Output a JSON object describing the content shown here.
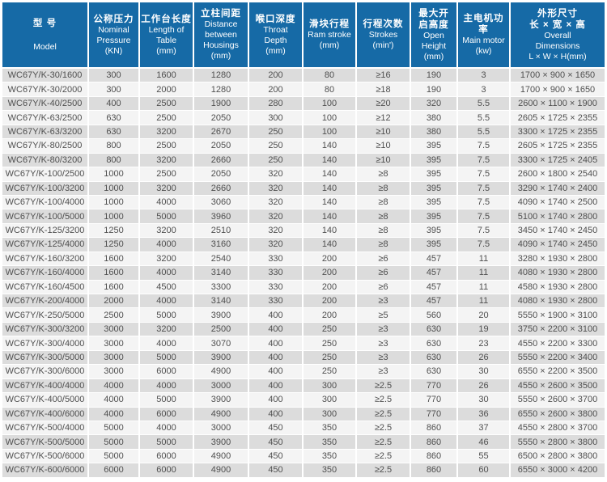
{
  "colors": {
    "header_bg": "#166aa6",
    "header_text": "#ffffff",
    "row_odd_bg": "#dcdcdc",
    "row_even_bg": "#f4f4f4",
    "cell_text": "#4f4f4f",
    "separator": "#ffffff",
    "page_bg": "#ffffff"
  },
  "table": {
    "name": "press-brake-specification-table",
    "columns": [
      {
        "key": "model",
        "zh": [
          "型 号"
        ],
        "en": [
          "Model"
        ]
      },
      {
        "key": "nominal-pressure",
        "zh": [
          "公称压力"
        ],
        "en": [
          "Nominal",
          "Pressure",
          "(KN)"
        ]
      },
      {
        "key": "table-length",
        "zh": [
          "工作台长度"
        ],
        "en": [
          "Length of",
          "Table",
          "(mm)"
        ]
      },
      {
        "key": "housing-distance",
        "zh": [
          "立柱间距"
        ],
        "en": [
          "Distance",
          "between",
          "Housings",
          "(mm)"
        ]
      },
      {
        "key": "throat-depth",
        "zh": [
          "喉口深度"
        ],
        "en": [
          "Throat",
          "Depth",
          "(mm)"
        ]
      },
      {
        "key": "ram-stroke",
        "zh": [
          "滑块行程"
        ],
        "en": [
          "Ram stroke",
          "(mm)"
        ]
      },
      {
        "key": "strokes",
        "zh": [
          "行程次数"
        ],
        "en": [
          "Strokes",
          "(min')"
        ]
      },
      {
        "key": "open-height",
        "zh": [
          "最大开",
          "启高度"
        ],
        "en": [
          "Open",
          "Height",
          "(mm)"
        ]
      },
      {
        "key": "main-motor",
        "zh": [
          "主电机功率"
        ],
        "en": [
          "Main motor",
          "(kw)"
        ]
      },
      {
        "key": "overall-dimensions",
        "zh": [
          "外形尺寸",
          "长 × 宽 × 高"
        ],
        "en": [
          "Overall",
          "Dimensions",
          "L × W × H(mm)"
        ]
      }
    ],
    "rows": [
      [
        "WC67Y/K-30/1600",
        "300",
        "1600",
        "1280",
        "200",
        "80",
        "≥16",
        "190",
        "3",
        "1700 × 900 × 1650"
      ],
      [
        "WC67Y/K-30/2000",
        "300",
        "2000",
        "1280",
        "200",
        "80",
        "≥18",
        "190",
        "3",
        "1700 × 900 × 1650"
      ],
      [
        "WC67Y/K-40/2500",
        "400",
        "2500",
        "1900",
        "280",
        "100",
        "≥20",
        "320",
        "5.5",
        "2600 × 1100 × 1900"
      ],
      [
        "WC67Y/K-63/2500",
        "630",
        "2500",
        "2050",
        "300",
        "100",
        "≥12",
        "380",
        "5.5",
        "2605 × 1725 × 2355"
      ],
      [
        "WC67Y/K-63/3200",
        "630",
        "3200",
        "2670",
        "250",
        "100",
        "≥10",
        "380",
        "5.5",
        "3300 × 1725 × 2355"
      ],
      [
        "WC67Y/K-80/2500",
        "800",
        "2500",
        "2050",
        "250",
        "140",
        "≥10",
        "395",
        "7.5",
        "2605 × 1725 × 2355"
      ],
      [
        "WC67Y/K-80/3200",
        "800",
        "3200",
        "2660",
        "250",
        "140",
        "≥10",
        "395",
        "7.5",
        "3300 × 1725 × 2405"
      ],
      [
        "WC67Y/K-100/2500",
        "1000",
        "2500",
        "2050",
        "320",
        "140",
        "≥8",
        "395",
        "7.5",
        "2600 × 1800 × 2540"
      ],
      [
        "WC67Y/K-100/3200",
        "1000",
        "3200",
        "2660",
        "320",
        "140",
        "≥8",
        "395",
        "7.5",
        "3290 × 1740 × 2400"
      ],
      [
        "WC67Y/K-100/4000",
        "1000",
        "4000",
        "3060",
        "320",
        "140",
        "≥8",
        "395",
        "7.5",
        "4090 × 1740 × 2500"
      ],
      [
        "WC67Y/K-100/5000",
        "1000",
        "5000",
        "3960",
        "320",
        "140",
        "≥8",
        "395",
        "7.5",
        "5100 × 1740 × 2800"
      ],
      [
        "WC67Y/K-125/3200",
        "1250",
        "3200",
        "2510",
        "320",
        "140",
        "≥8",
        "395",
        "7.5",
        "3450 × 1740 × 2450"
      ],
      [
        "WC67Y/K-125/4000",
        "1250",
        "4000",
        "3160",
        "320",
        "140",
        "≥8",
        "395",
        "7.5",
        "4090 × 1740 × 2450"
      ],
      [
        "WC67Y/K-160/3200",
        "1600",
        "3200",
        "2540",
        "330",
        "200",
        "≥6",
        "457",
        "11",
        "3280 × 1930 × 2800"
      ],
      [
        "WC67Y/K-160/4000",
        "1600",
        "4000",
        "3140",
        "330",
        "200",
        "≥6",
        "457",
        "11",
        "4080 × 1930 × 2800"
      ],
      [
        "WC67Y/K-160/4500",
        "1600",
        "4500",
        "3300",
        "330",
        "200",
        "≥6",
        "457",
        "11",
        "4580 × 1930 × 2800"
      ],
      [
        "WC67Y/K-200/4000",
        "2000",
        "4000",
        "3140",
        "330",
        "200",
        "≥3",
        "457",
        "11",
        "4080 × 1930 × 2800"
      ],
      [
        "WC67Y/K-250/5000",
        "2500",
        "5000",
        "3900",
        "400",
        "200",
        "≥5",
        "560",
        "20",
        "5550 × 1900 × 3100"
      ],
      [
        "WC67Y/K-300/3200",
        "3000",
        "3200",
        "2500",
        "400",
        "250",
        "≥3",
        "630",
        "19",
        "3750 × 2200 × 3100"
      ],
      [
        "WC67Y/K-300/4000",
        "3000",
        "4000",
        "3070",
        "400",
        "250",
        "≥3",
        "630",
        "23",
        "4550 × 2200 × 3300"
      ],
      [
        "WC67Y/K-300/5000",
        "3000",
        "5000",
        "3900",
        "400",
        "250",
        "≥3",
        "630",
        "26",
        "5550 × 2200 × 3400"
      ],
      [
        "WC67Y/K-300/6000",
        "3000",
        "6000",
        "4900",
        "400",
        "250",
        "≥3",
        "630",
        "30",
        "6550 × 2200 × 3500"
      ],
      [
        "WC67Y/K-400/4000",
        "4000",
        "4000",
        "3000",
        "400",
        "300",
        "≥2.5",
        "770",
        "26",
        "4550 × 2600 × 3500"
      ],
      [
        "WC67Y/K-400/5000",
        "4000",
        "5000",
        "3900",
        "400",
        "300",
        "≥2.5",
        "770",
        "30",
        "5550 × 2600 × 3700"
      ],
      [
        "WC67Y/K-400/6000",
        "4000",
        "6000",
        "4900",
        "400",
        "300",
        "≥2.5",
        "770",
        "36",
        "6550 × 2600 × 3800"
      ],
      [
        "WC67Y/K-500/4000",
        "5000",
        "4000",
        "3000",
        "450",
        "350",
        "≥2.5",
        "860",
        "37",
        "4550 × 2800 × 3700"
      ],
      [
        "WC67Y/K-500/5000",
        "5000",
        "5000",
        "3900",
        "450",
        "350",
        "≥2.5",
        "860",
        "46",
        "5550 × 2800 × 3800"
      ],
      [
        "WC67Y/K-500/6000",
        "5000",
        "6000",
        "4900",
        "450",
        "350",
        "≥2.5",
        "860",
        "55",
        "6500 × 2800 × 3800"
      ],
      [
        "WC67Y/K-600/6000",
        "6000",
        "6000",
        "4900",
        "450",
        "350",
        "≥2.5",
        "860",
        "60",
        "6550 × 3000 × 4200"
      ]
    ]
  }
}
